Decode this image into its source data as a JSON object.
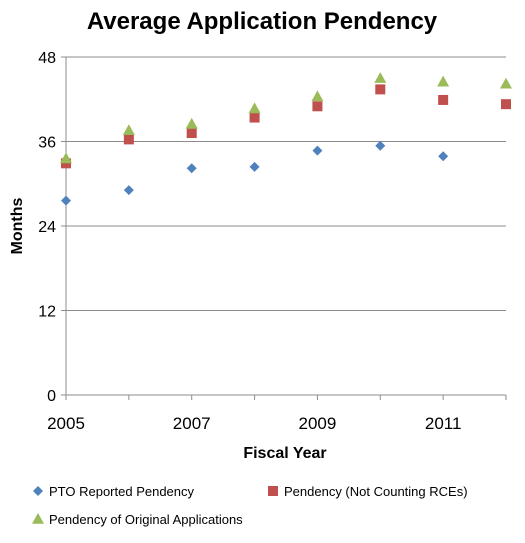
{
  "chart_data": {
    "type": "scatter",
    "title": "Average Application Pendency",
    "xlabel": "Fiscal Year",
    "ylabel": "Months",
    "xlim": [
      2005,
      2012
    ],
    "ylim": [
      0,
      48
    ],
    "x_ticks": [
      2005,
      2007,
      2009,
      2011
    ],
    "y_ticks": [
      0,
      12,
      24,
      36,
      48
    ],
    "grid": true,
    "legend_position": "bottom",
    "series": [
      {
        "name": "PTO Reported Pendency",
        "marker": "diamond",
        "color": "#4F81BD",
        "x": [
          2005,
          2006,
          2007,
          2008,
          2009,
          2010,
          2011
        ],
        "y": [
          27.6,
          29.1,
          32.2,
          32.4,
          34.7,
          35.4,
          33.9
        ]
      },
      {
        "name": "Pendency (Not Counting RCEs)",
        "marker": "square",
        "color": "#C0504D",
        "x": [
          2005,
          2006,
          2007,
          2008,
          2009,
          2010,
          2011,
          2012
        ],
        "y": [
          32.9,
          36.3,
          37.2,
          39.4,
          41.0,
          43.4,
          41.9,
          41.3
        ]
      },
      {
        "name": "Pendency of Original Applications",
        "marker": "triangle",
        "color": "#9BBB59",
        "x": [
          2005,
          2006,
          2007,
          2008,
          2009,
          2010,
          2011,
          2012
        ],
        "y": [
          33.6,
          37.6,
          38.5,
          40.7,
          42.4,
          45.0,
          44.5,
          44.2
        ]
      }
    ]
  }
}
